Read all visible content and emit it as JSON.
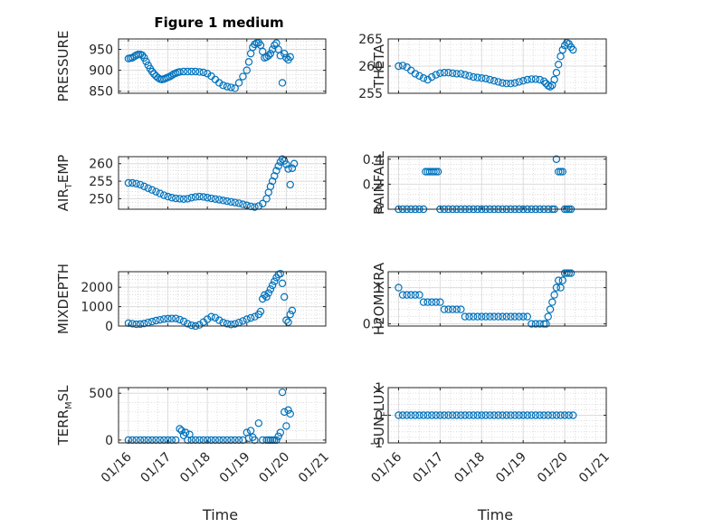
{
  "figure": {
    "title": "Figure 1 medium",
    "marker_color": "#0072BD"
  },
  "x_axis": {
    "label": "Time",
    "ticks": [
      0,
      1,
      2,
      3,
      4,
      5
    ],
    "tick_labels": [
      "01/16",
      "01/17",
      "01/18",
      "01/19",
      "01/20",
      "01/21"
    ]
  },
  "chart_data": [
    {
      "type": "scatter",
      "ylabel": "PRESSURE",
      "yticks": [
        850,
        900,
        950
      ],
      "ylim": [
        845,
        975
      ],
      "x": [
        0.0,
        0.05,
        0.1,
        0.15,
        0.2,
        0.25,
        0.3,
        0.35,
        0.4,
        0.45,
        0.5,
        0.55,
        0.6,
        0.65,
        0.7,
        0.75,
        0.8,
        0.85,
        0.9,
        0.95,
        1.0,
        1.05,
        1.1,
        1.15,
        1.2,
        1.25,
        1.3,
        1.4,
        1.5,
        1.6,
        1.7,
        1.8,
        1.9,
        2.0,
        2.1,
        2.2,
        2.3,
        2.4,
        2.5,
        2.6,
        2.7,
        2.8,
        2.9,
        3.0,
        3.05,
        3.1,
        3.15,
        3.2,
        3.25,
        3.3,
        3.35,
        3.4,
        3.45,
        3.5,
        3.55,
        3.6,
        3.65,
        3.7,
        3.75,
        3.8,
        3.85,
        3.9,
        3.95,
        4.0,
        4.05,
        4.1
      ],
      "y": [
        928,
        929,
        930,
        933,
        936,
        938,
        938,
        936,
        930,
        921,
        912,
        904,
        897,
        891,
        886,
        882,
        879,
        878,
        879,
        881,
        883,
        885,
        888,
        891,
        893,
        895,
        896,
        897,
        897,
        897,
        897,
        896,
        895,
        892,
        886,
        878,
        870,
        864,
        861,
        859,
        857,
        870,
        885,
        900,
        920,
        940,
        955,
        962,
        965,
        966,
        960,
        945,
        930,
        932,
        935,
        940,
        950,
        960,
        965,
        950,
        935,
        870,
        940,
        930,
        925,
        932
      ]
    },
    {
      "type": "scatter",
      "ylabel": "THETA",
      "yticks": [
        255,
        260,
        265
      ],
      "ylim": [
        255,
        265
      ],
      "x": [
        0.0,
        0.1,
        0.2,
        0.3,
        0.4,
        0.5,
        0.6,
        0.7,
        0.8,
        0.9,
        1.0,
        1.1,
        1.2,
        1.3,
        1.4,
        1.5,
        1.6,
        1.7,
        1.8,
        1.9,
        2.0,
        2.1,
        2.2,
        2.3,
        2.4,
        2.5,
        2.6,
        2.7,
        2.8,
        2.9,
        3.0,
        3.1,
        3.2,
        3.3,
        3.4,
        3.5,
        3.55,
        3.6,
        3.65,
        3.7,
        3.75,
        3.8,
        3.85,
        3.9,
        3.95,
        4.0,
        4.05,
        4.1,
        4.15,
        4.2
      ],
      "y": [
        260.0,
        260.1,
        259.8,
        259.2,
        258.6,
        258.2,
        257.8,
        257.5,
        258.0,
        258.4,
        258.7,
        258.8,
        258.8,
        258.7,
        258.6,
        258.6,
        258.4,
        258.2,
        258.0,
        257.9,
        257.8,
        257.7,
        257.5,
        257.3,
        257.1,
        256.9,
        256.8,
        256.8,
        256.9,
        257.1,
        257.3,
        257.5,
        257.6,
        257.6,
        257.5,
        257.2,
        256.8,
        256.4,
        256.2,
        256.5,
        257.5,
        258.8,
        260.3,
        261.8,
        263.0,
        263.8,
        264.3,
        264.1,
        263.5,
        263.0
      ]
    },
    {
      "type": "scatter",
      "ylabel": "AIR_TEMP",
      "yticks": [
        250,
        255,
        260
      ],
      "ylim": [
        247,
        262
      ],
      "x": [
        0.0,
        0.1,
        0.2,
        0.3,
        0.4,
        0.5,
        0.6,
        0.7,
        0.8,
        0.9,
        1.0,
        1.1,
        1.2,
        1.3,
        1.4,
        1.5,
        1.6,
        1.7,
        1.8,
        1.9,
        2.0,
        2.1,
        2.2,
        2.3,
        2.4,
        2.5,
        2.6,
        2.7,
        2.8,
        2.9,
        3.0,
        3.1,
        3.2,
        3.3,
        3.4,
        3.5,
        3.55,
        3.6,
        3.65,
        3.7,
        3.75,
        3.8,
        3.85,
        3.9,
        3.95,
        4.0,
        4.05,
        4.1,
        4.15,
        4.2
      ],
      "y": [
        254.5,
        254.5,
        254.3,
        254.0,
        253.5,
        253.0,
        252.5,
        252.0,
        251.5,
        251.0,
        250.6,
        250.3,
        250.1,
        250.0,
        249.9,
        250.0,
        250.3,
        250.5,
        250.6,
        250.5,
        250.3,
        250.1,
        249.9,
        249.7,
        249.5,
        249.3,
        249.1,
        248.9,
        248.7,
        248.4,
        248.1,
        247.8,
        247.6,
        247.9,
        248.6,
        250.0,
        251.8,
        253.5,
        255.0,
        256.5,
        258.0,
        259.3,
        260.5,
        261.3,
        260.8,
        259.8,
        258.5,
        254.0,
        258.7,
        260.0
      ]
    },
    {
      "type": "scatter",
      "ylabel": "RAINFALL",
      "yticks": [
        0,
        0.2,
        0.4
      ],
      "ylim": [
        0,
        0.42
      ],
      "x": [
        0.0,
        0.1,
        0.2,
        0.3,
        0.4,
        0.5,
        0.6,
        0.65,
        0.7,
        0.75,
        0.8,
        0.85,
        0.9,
        0.95,
        1.0,
        1.1,
        1.2,
        1.3,
        1.4,
        1.5,
        1.6,
        1.7,
        1.8,
        1.9,
        2.0,
        2.1,
        2.2,
        2.3,
        2.4,
        2.5,
        2.6,
        2.7,
        2.8,
        2.9,
        3.0,
        3.1,
        3.2,
        3.3,
        3.4,
        3.5,
        3.6,
        3.7,
        3.75,
        3.8,
        3.85,
        3.9,
        3.95,
        4.0,
        4.05,
        4.1,
        4.15
      ],
      "y": [
        0,
        0,
        0,
        0,
        0,
        0,
        0,
        0.3,
        0.3,
        0.3,
        0.3,
        0.3,
        0.3,
        0.3,
        0,
        0,
        0,
        0,
        0,
        0,
        0,
        0,
        0,
        0,
        0,
        0,
        0,
        0,
        0,
        0,
        0,
        0,
        0,
        0,
        0,
        0,
        0,
        0,
        0,
        0,
        0,
        0,
        0,
        0.4,
        0.3,
        0.3,
        0.3,
        0,
        0,
        0,
        0
      ]
    },
    {
      "type": "scatter",
      "ylabel": "MIXDEPTH",
      "yticks": [
        0,
        1000,
        2000
      ],
      "ylim": [
        0,
        2800
      ],
      "x": [
        0.0,
        0.1,
        0.2,
        0.3,
        0.4,
        0.5,
        0.6,
        0.7,
        0.8,
        0.9,
        1.0,
        1.1,
        1.2,
        1.3,
        1.4,
        1.5,
        1.6,
        1.7,
        1.8,
        1.9,
        2.0,
        2.1,
        2.2,
        2.3,
        2.4,
        2.5,
        2.6,
        2.7,
        2.8,
        2.9,
        3.0,
        3.1,
        3.2,
        3.3,
        3.35,
        3.4,
        3.45,
        3.5,
        3.55,
        3.6,
        3.65,
        3.7,
        3.75,
        3.8,
        3.85,
        3.9,
        3.95,
        4.0,
        4.05,
        4.1,
        4.15
      ],
      "y": [
        150,
        120,
        90,
        100,
        130,
        180,
        230,
        280,
        320,
        360,
        380,
        390,
        390,
        330,
        240,
        120,
        40,
        0,
        60,
        200,
        350,
        480,
        430,
        300,
        180,
        120,
        80,
        110,
        180,
        260,
        350,
        420,
        480,
        600,
        750,
        1400,
        1600,
        1500,
        1700,
        1900,
        2100,
        2300,
        2500,
        2650,
        2700,
        2200,
        1500,
        300,
        200,
        600,
        800
      ]
    },
    {
      "type": "scatter",
      "ylabel": "H2OMIXRA",
      "yticks": [
        0.5,
        1
      ],
      "ylim": [
        0.47,
        1.22
      ],
      "x": [
        0.0,
        0.1,
        0.2,
        0.3,
        0.4,
        0.5,
        0.6,
        0.7,
        0.8,
        0.9,
        1.0,
        1.1,
        1.2,
        1.3,
        1.4,
        1.5,
        1.6,
        1.7,
        1.8,
        1.9,
        2.0,
        2.1,
        2.2,
        2.3,
        2.4,
        2.5,
        2.6,
        2.7,
        2.8,
        2.9,
        3.0,
        3.1,
        3.2,
        3.3,
        3.4,
        3.5,
        3.55,
        3.6,
        3.65,
        3.7,
        3.75,
        3.8,
        3.85,
        3.9,
        3.95,
        4.0,
        4.05,
        4.1,
        4.15
      ],
      "y": [
        1.0,
        0.9,
        0.9,
        0.9,
        0.9,
        0.9,
        0.8,
        0.8,
        0.8,
        0.8,
        0.8,
        0.7,
        0.7,
        0.7,
        0.7,
        0.7,
        0.6,
        0.6,
        0.6,
        0.6,
        0.6,
        0.6,
        0.6,
        0.6,
        0.6,
        0.6,
        0.6,
        0.6,
        0.6,
        0.6,
        0.6,
        0.6,
        0.5,
        0.5,
        0.5,
        0.5,
        0.5,
        0.6,
        0.7,
        0.8,
        0.9,
        1.0,
        1.1,
        1.0,
        1.1,
        1.2,
        1.2,
        1.2,
        1.2
      ]
    },
    {
      "type": "scatter",
      "ylabel": "TERR_MSL",
      "yticks": [
        0,
        500
      ],
      "ylim": [
        -30,
        560
      ],
      "x": [
        0.0,
        0.1,
        0.2,
        0.3,
        0.4,
        0.5,
        0.6,
        0.7,
        0.8,
        0.9,
        1.0,
        1.1,
        1.2,
        1.3,
        1.35,
        1.4,
        1.45,
        1.5,
        1.55,
        1.6,
        1.7,
        1.8,
        1.9,
        2.0,
        2.1,
        2.2,
        2.3,
        2.4,
        2.5,
        2.6,
        2.7,
        2.8,
        2.9,
        3.0,
        3.05,
        3.1,
        3.15,
        3.2,
        3.3,
        3.4,
        3.5,
        3.55,
        3.6,
        3.65,
        3.7,
        3.75,
        3.8,
        3.85,
        3.9,
        3.95,
        4.0,
        4.05,
        4.1
      ],
      "y": [
        0,
        0,
        0,
        0,
        0,
        0,
        0,
        0,
        0,
        0,
        0,
        0,
        0,
        120,
        100,
        50,
        80,
        0,
        60,
        0,
        0,
        0,
        0,
        0,
        0,
        0,
        0,
        0,
        0,
        0,
        0,
        0,
        0,
        80,
        20,
        100,
        30,
        0,
        180,
        0,
        0,
        0,
        0,
        0,
        0,
        0,
        40,
        80,
        510,
        300,
        150,
        320,
        280
      ]
    },
    {
      "type": "scatter",
      "ylabel": "SUN_FLUX",
      "yticks": [
        -1,
        0,
        1
      ],
      "ylim": [
        -1,
        1
      ],
      "x": [
        0.0,
        0.1,
        0.2,
        0.3,
        0.4,
        0.5,
        0.6,
        0.7,
        0.8,
        0.9,
        1.0,
        1.1,
        1.2,
        1.3,
        1.4,
        1.5,
        1.6,
        1.7,
        1.8,
        1.9,
        2.0,
        2.1,
        2.2,
        2.3,
        2.4,
        2.5,
        2.6,
        2.7,
        2.8,
        2.9,
        3.0,
        3.1,
        3.2,
        3.3,
        3.4,
        3.5,
        3.6,
        3.7,
        3.8,
        3.9,
        4.0,
        4.1,
        4.2
      ],
      "y": [
        0,
        0,
        0,
        0,
        0,
        0,
        0,
        0,
        0,
        0,
        0,
        0,
        0,
        0,
        0,
        0,
        0,
        0,
        0,
        0,
        0,
        0,
        0,
        0,
        0,
        0,
        0,
        0,
        0,
        0,
        0,
        0,
        0,
        0,
        0,
        0,
        0,
        0,
        0,
        0,
        0,
        0,
        0
      ]
    }
  ]
}
